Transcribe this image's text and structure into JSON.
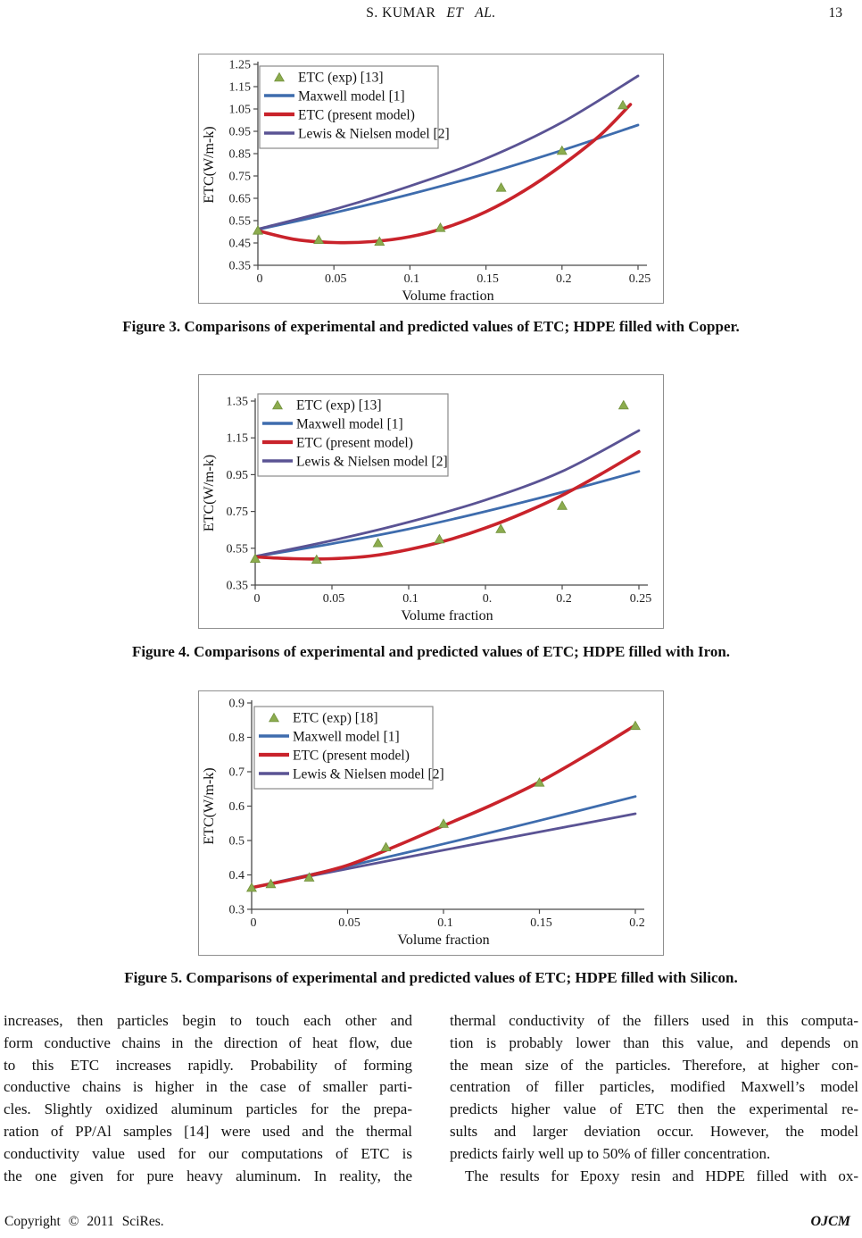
{
  "header": {
    "authors": "S. KUMAR",
    "et_al": "ET AL.",
    "page_number": "13"
  },
  "figures": [
    {
      "caption": "Figure 3. Comparisons of experimental and predicted values of ETC; HDPE filled with Copper."
    },
    {
      "caption": "Figure 4. Comparisons of experimental and predicted values of ETC; HDPE filled with Iron."
    },
    {
      "caption": "Figure 5. Comparisons of experimental and predicted values of ETC; HDPE filled with Silicon."
    }
  ],
  "chart_data": [
    {
      "type": "line",
      "title": "",
      "xlabel": "Volume fraction",
      "ylabel": "ETC(W/m-k)",
      "xlim": [
        0,
        0.25
      ],
      "ylim": [
        0.35,
        1.25
      ],
      "grid": false,
      "legend_position": "top-left",
      "xticks": [
        {
          "v": 0,
          "label": "0"
        },
        {
          "v": 0.05,
          "label": "0.05"
        },
        {
          "v": 0.1,
          "label": "0.1"
        },
        {
          "v": 0.15,
          "label": "0.15"
        },
        {
          "v": 0.2,
          "label": "0.2"
        },
        {
          "v": 0.25,
          "label": "0.25"
        }
      ],
      "yticks": [
        {
          "v": 0.35,
          "label": "0.35"
        },
        {
          "v": 0.45,
          "label": "0.45"
        },
        {
          "v": 0.55,
          "label": "0.55"
        },
        {
          "v": 0.65,
          "label": "0.65"
        },
        {
          "v": 0.75,
          "label": "0.75"
        },
        {
          "v": 0.85,
          "label": "0.85"
        },
        {
          "v": 0.95,
          "label": "0.95"
        },
        {
          "v": 1.05,
          "label": "1.05"
        },
        {
          "v": 1.15,
          "label": "1.15"
        },
        {
          "v": 1.25,
          "label": "1.25"
        }
      ],
      "series": [
        {
          "name": "ETC (exp) [13]",
          "kind": "scatter",
          "marker": "triangle",
          "color": "#8CAC4E",
          "edge": "#71903C",
          "x": [
            0,
            0.04,
            0.08,
            0.12,
            0.16,
            0.2,
            0.24
          ],
          "y": [
            0.505,
            0.463,
            0.455,
            0.517,
            0.697,
            0.862,
            1.066
          ]
        },
        {
          "name": "Maxwell model [1]",
          "kind": "line",
          "color": "#3E6CAD",
          "width": 2.8,
          "x": [
            0,
            0.05,
            0.1,
            0.15,
            0.2,
            0.25
          ],
          "y": [
            0.51,
            0.585,
            0.668,
            0.76,
            0.865,
            0.978
          ]
        },
        {
          "name": "ETC (present model)",
          "kind": "line",
          "color": "#C9232B",
          "width": 3.6,
          "x": [
            0,
            0.025,
            0.05,
            0.075,
            0.1,
            0.125,
            0.15,
            0.175,
            0.2,
            0.225,
            0.245
          ],
          "y": [
            0.505,
            0.465,
            0.452,
            0.456,
            0.478,
            0.522,
            0.59,
            0.683,
            0.798,
            0.932,
            1.07
          ]
        },
        {
          "name": "Lewis & Nielsen model [2]",
          "kind": "line",
          "color": "#5A5394",
          "width": 2.8,
          "x": [
            0,
            0.05,
            0.1,
            0.15,
            0.2,
            0.25
          ],
          "y": [
            0.512,
            0.6,
            0.705,
            0.828,
            0.99,
            1.198
          ]
        }
      ]
    },
    {
      "type": "line",
      "title": "",
      "xlabel": "Volume fraction",
      "ylabel": "ETC(W/m-k)",
      "xlim": [
        0,
        0.25
      ],
      "ylim": [
        0.35,
        1.35
      ],
      "grid": false,
      "legend_position": "top-left",
      "xticks": [
        {
          "v": 0,
          "label": "0"
        },
        {
          "v": 0.05,
          "label": "0.05"
        },
        {
          "v": 0.1,
          "label": "0.1"
        },
        {
          "v": 0.15,
          "label": "0."
        },
        {
          "v": 0.2,
          "label": "0.2"
        },
        {
          "v": 0.25,
          "label": "0.25"
        }
      ],
      "yticks": [
        {
          "v": 0.35,
          "label": "0.35"
        },
        {
          "v": 0.55,
          "label": "0.55"
        },
        {
          "v": 0.75,
          "label": "0.75"
        },
        {
          "v": 0.95,
          "label": "0.95"
        },
        {
          "v": 1.15,
          "label": "1.15"
        },
        {
          "v": 1.35,
          "label": "1.35"
        }
      ],
      "series": [
        {
          "name": "ETC (exp) [13]",
          "kind": "scatter",
          "marker": "triangle",
          "color": "#8CAC4E",
          "edge": "#71903C",
          "x": [
            0,
            0.04,
            0.08,
            0.12,
            0.16,
            0.2,
            0.24
          ],
          "y": [
            0.492,
            0.487,
            0.577,
            0.598,
            0.654,
            0.78,
            1.326
          ]
        },
        {
          "name": "Maxwell model [1]",
          "kind": "line",
          "color": "#3E6CAD",
          "width": 2.8,
          "x": [
            0,
            0.05,
            0.1,
            0.15,
            0.2,
            0.25
          ],
          "y": [
            0.505,
            0.575,
            0.655,
            0.75,
            0.855,
            0.968
          ]
        },
        {
          "name": "ETC (present model)",
          "kind": "line",
          "color": "#C9232B",
          "width": 3.6,
          "x": [
            0,
            0.025,
            0.05,
            0.075,
            0.1,
            0.125,
            0.15,
            0.175,
            0.2,
            0.225,
            0.25
          ],
          "y": [
            0.503,
            0.493,
            0.493,
            0.508,
            0.543,
            0.593,
            0.66,
            0.742,
            0.838,
            0.952,
            1.075
          ]
        },
        {
          "name": "Lewis & Nielsen model [2]",
          "kind": "line",
          "color": "#5A5394",
          "width": 2.8,
          "x": [
            0,
            0.05,
            0.1,
            0.15,
            0.2,
            0.25
          ],
          "y": [
            0.506,
            0.592,
            0.692,
            0.812,
            0.968,
            1.19
          ]
        }
      ]
    },
    {
      "type": "line",
      "title": "",
      "xlabel": "Volume fraction",
      "ylabel": "ETC(W/m-k)",
      "xlim": [
        0,
        0.2
      ],
      "ylim": [
        0.3,
        0.9
      ],
      "grid": false,
      "legend_position": "top-left",
      "xticks": [
        {
          "v": 0,
          "label": "0"
        },
        {
          "v": 0.05,
          "label": "0.05"
        },
        {
          "v": 0.1,
          "label": "0.1"
        },
        {
          "v": 0.15,
          "label": "0.15"
        },
        {
          "v": 0.2,
          "label": "0.2"
        }
      ],
      "yticks": [
        {
          "v": 0.3,
          "label": "0.3"
        },
        {
          "v": 0.4,
          "label": "0.4"
        },
        {
          "v": 0.5,
          "label": "0.5"
        },
        {
          "v": 0.6,
          "label": "0.6"
        },
        {
          "v": 0.7,
          "label": "0.7"
        },
        {
          "v": 0.8,
          "label": "0.8"
        },
        {
          "v": 0.9,
          "label": "0.9"
        }
      ],
      "series": [
        {
          "name": "ETC (exp) [18]",
          "kind": "scatter",
          "marker": "triangle",
          "color": "#8CAC4E",
          "edge": "#71903C",
          "x": [
            0,
            0.01,
            0.03,
            0.07,
            0.1,
            0.15,
            0.2
          ],
          "y": [
            0.362,
            0.373,
            0.392,
            0.48,
            0.548,
            0.668,
            0.833
          ]
        },
        {
          "name": "Maxwell model [1]",
          "kind": "line",
          "color": "#3E6CAD",
          "width": 2.8,
          "x": [
            0,
            0.05,
            0.1,
            0.15,
            0.2
          ],
          "y": [
            0.363,
            0.425,
            0.49,
            0.558,
            0.628
          ]
        },
        {
          "name": "ETC (present model)",
          "kind": "line",
          "color": "#C9232B",
          "width": 3.6,
          "x": [
            0,
            0.025,
            0.05,
            0.075,
            0.1,
            0.125,
            0.15,
            0.175,
            0.2
          ],
          "y": [
            0.363,
            0.392,
            0.428,
            0.483,
            0.543,
            0.603,
            0.67,
            0.75,
            0.835
          ]
        },
        {
          "name": "Lewis & Nielsen model [2]",
          "kind": "line",
          "color": "#5A5394",
          "width": 2.8,
          "x": [
            0,
            0.05,
            0.1,
            0.15,
            0.2
          ],
          "y": [
            0.363,
            0.418,
            0.472,
            0.525,
            0.578
          ]
        }
      ]
    }
  ],
  "body": {
    "left_column_lines": [
      {
        "text": "increases, then particles begin to touch each other and",
        "justify": true
      },
      {
        "text": "form conductive chains in the direction of heat flow, due",
        "justify": true
      },
      {
        "text": "to this ETC increases rapidly. Probability of forming",
        "justify": true
      },
      {
        "text": "conductive chains is higher in the case of smaller parti-",
        "justify": true
      },
      {
        "text": "cles. Slightly oxidized aluminum particles for the prepa-",
        "justify": true
      },
      {
        "text": "ration of PP/Al samples [14] were used and the thermal",
        "justify": true
      },
      {
        "text": "conductivity value used for our computations of ETC is",
        "justify": true
      },
      {
        "text": "the one given for pure heavy aluminum. In reality, the",
        "justify": true
      }
    ],
    "right_column_lines": [
      {
        "text": "thermal conductivity of the fillers used in this computa-",
        "justify": true
      },
      {
        "text": "tion is probably lower than this value, and depends on",
        "justify": true
      },
      {
        "text": "the mean size of the particles. Therefore, at higher con-",
        "justify": true
      },
      {
        "text": "centration of filler particles, modified Maxwell’s model",
        "justify": true
      },
      {
        "text": "predicts higher value of ETC then the experimental re-",
        "justify": true
      },
      {
        "text": "sults and larger deviation occur. However, the model",
        "justify": true
      },
      {
        "text": "predicts fairly well up to 50% of filler concentration.",
        "justify": false
      },
      {
        "text": "The results for Epoxy resin and HDPE filled with ox-",
        "justify": true,
        "indent": true
      }
    ]
  },
  "footer": {
    "copyright": "Copyright © 2011 SciRes.",
    "journal": "OJCM"
  }
}
